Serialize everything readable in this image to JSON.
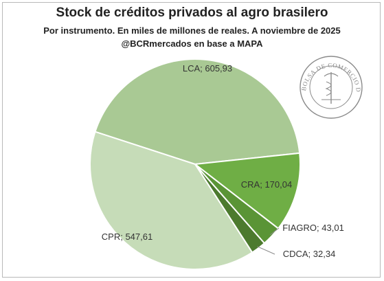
{
  "chart_data": {
    "type": "pie",
    "title": "Stock de créditos privados al agro brasilero",
    "subtitle": "Por instrumento. En miles de millones de reales. A noviembre de 2025",
    "source": "@BCRmercados en base a MAPA",
    "slices": [
      {
        "label": "LCA",
        "value": 605.93,
        "display": "LCA; 605,93",
        "color": "#a9c994"
      },
      {
        "label": "CRA",
        "value": 170.04,
        "display": "CRA; 170,04",
        "color": "#6fae45"
      },
      {
        "label": "FIAGRO",
        "value": 43.01,
        "display": "FIAGRO; 43,01",
        "color": "#5a9436"
      },
      {
        "label": "CDCA",
        "value": 32.34,
        "display": "CDCA; 32,34",
        "color": "#4c7a2e"
      },
      {
        "label": "CPR",
        "value": 547.61,
        "display": "CPR; 547,61",
        "color": "#c6dcb8"
      }
    ]
  },
  "logo": {
    "text": "BOLSA DE COMERCIO DE ROSARIO",
    "color": "#8a8a8a"
  }
}
